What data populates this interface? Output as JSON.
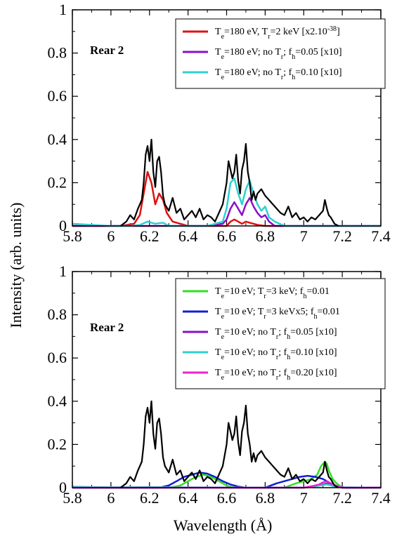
{
  "ylabel": "Intensity (arb. units)",
  "xlabel": "Wavelength (Å)",
  "chart_data": [
    {
      "type": "line",
      "annotation": "Rear 2",
      "xlim": [
        5.8,
        7.4
      ],
      "ylim": [
        0,
        1
      ],
      "xticks": [
        "5.8",
        "6",
        "6.2",
        "6.4",
        "6.6",
        "6.8",
        "7",
        "7.2",
        "7.4"
      ],
      "yticks": [
        "0",
        "0.2",
        "0.4",
        "0.6",
        "0.8",
        "1"
      ],
      "legend_position": "top-right",
      "series": [
        {
          "legend": [
            [
              "T",
              "",
              "e"
            ],
            [
              "=180 eV, T",
              "",
              ""
            ],
            [
              "",
              "",
              "r"
            ],
            [
              "=2 keV [x2.10",
              "",
              ""
            ],
            [
              "",
              "-38",
              ""
            ],
            [
              "]",
              "",
              ""
            ]
          ],
          "color": "#e01010",
          "x": [
            5.8,
            6.05,
            6.12,
            6.15,
            6.17,
            6.19,
            6.21,
            6.23,
            6.25,
            6.27,
            6.29,
            6.32,
            6.36,
            6.4,
            6.6,
            6.62,
            6.64,
            6.66,
            6.68,
            6.7,
            6.72,
            6.74,
            6.76,
            6.8,
            6.9,
            7.4
          ],
          "y": [
            0,
            0,
            0.01,
            0.05,
            0.15,
            0.25,
            0.2,
            0.1,
            0.15,
            0.12,
            0.06,
            0.02,
            0.01,
            0,
            0,
            0.02,
            0.03,
            0.02,
            0.01,
            0.02,
            0.015,
            0.01,
            0.005,
            0,
            0,
            0
          ]
        },
        {
          "legend": [
            [
              "T",
              "",
              "e"
            ],
            [
              "=180 eV; no T",
              "",
              ""
            ],
            [
              "",
              "",
              "r"
            ],
            [
              "; f",
              "",
              ""
            ],
            [
              "",
              "",
              "h"
            ],
            [
              "=0.05 [x10]",
              "",
              ""
            ]
          ],
          "color": "#8a10c8",
          "x": [
            5.8,
            6.5,
            6.58,
            6.6,
            6.62,
            6.64,
            6.66,
            6.68,
            6.7,
            6.72,
            6.74,
            6.76,
            6.78,
            6.8,
            6.82,
            6.85,
            7.4
          ],
          "y": [
            0,
            0,
            0.01,
            0.03,
            0.08,
            0.11,
            0.08,
            0.05,
            0.1,
            0.13,
            0.09,
            0.06,
            0.04,
            0.05,
            0.02,
            0,
            0
          ]
        },
        {
          "legend": [
            [
              "T",
              "",
              "e"
            ],
            [
              "=180 eV; no T",
              "",
              ""
            ],
            [
              "",
              "",
              "r"
            ],
            [
              "; f",
              "",
              ""
            ],
            [
              "",
              "",
              "h"
            ],
            [
              "=0.10 [x10]",
              "",
              ""
            ]
          ],
          "color": "#30d0d0",
          "x": [
            5.8,
            5.9,
            6.0,
            6.1,
            6.15,
            6.19,
            6.23,
            6.27,
            6.3,
            6.5,
            6.58,
            6.6,
            6.62,
            6.64,
            6.66,
            6.68,
            6.7,
            6.72,
            6.74,
            6.76,
            6.78,
            6.8,
            6.82,
            6.85,
            6.9,
            7.4
          ],
          "y": [
            0.01,
            0.005,
            0,
            0,
            0.005,
            0.02,
            0.01,
            0.015,
            0,
            0,
            0.02,
            0.08,
            0.2,
            0.22,
            0.15,
            0.1,
            0.17,
            0.21,
            0.15,
            0.1,
            0.07,
            0.09,
            0.04,
            0.02,
            0,
            0
          ]
        },
        {
          "legend": null,
          "color": "#000000",
          "x": [
            6.05,
            6.08,
            6.1,
            6.12,
            6.14,
            6.16,
            6.17,
            6.18,
            6.19,
            6.2,
            6.21,
            6.22,
            6.23,
            6.24,
            6.25,
            6.26,
            6.27,
            6.28,
            6.3,
            6.32,
            6.34,
            6.36,
            6.38,
            6.4,
            6.42,
            6.44,
            6.46,
            6.48,
            6.5,
            6.52,
            6.54,
            6.56,
            6.58,
            6.6,
            6.61,
            6.62,
            6.63,
            6.64,
            6.65,
            6.66,
            6.67,
            6.68,
            6.69,
            6.7,
            6.71,
            6.72,
            6.73,
            6.74,
            6.75,
            6.76,
            6.78,
            6.8,
            6.82,
            6.84,
            6.86,
            6.88,
            6.9,
            6.92,
            6.94,
            6.96,
            6.98,
            7.0,
            7.02,
            7.04,
            7.06,
            7.08,
            7.1,
            7.11,
            7.12,
            7.13,
            7.14,
            7.16,
            7.18
          ],
          "y": [
            0,
            0.02,
            0.05,
            0.03,
            0.08,
            0.12,
            0.2,
            0.33,
            0.37,
            0.3,
            0.4,
            0.25,
            0.18,
            0.3,
            0.32,
            0.25,
            0.14,
            0.1,
            0.07,
            0.13,
            0.06,
            0.08,
            0.03,
            0.05,
            0.07,
            0.04,
            0.08,
            0.03,
            0.05,
            0.04,
            0.02,
            0.06,
            0.1,
            0.2,
            0.3,
            0.26,
            0.22,
            0.25,
            0.33,
            0.21,
            0.15,
            0.26,
            0.3,
            0.38,
            0.25,
            0.2,
            0.12,
            0.16,
            0.12,
            0.15,
            0.17,
            0.14,
            0.12,
            0.1,
            0.08,
            0.06,
            0.05,
            0.09,
            0.04,
            0.06,
            0.03,
            0.04,
            0.02,
            0.04,
            0.03,
            0.05,
            0.07,
            0.12,
            0.08,
            0.05,
            0.04,
            0.01,
            0
          ]
        }
      ]
    },
    {
      "type": "line",
      "annotation": "Rear 2",
      "xlim": [
        5.8,
        7.4
      ],
      "ylim": [
        0,
        1
      ],
      "xticks": [
        "5.8",
        "6",
        "6.2",
        "6.4",
        "6.6",
        "6.8",
        "7",
        "7.2",
        "7.4"
      ],
      "yticks": [
        "0",
        "0.2",
        "0.4",
        "0.6",
        "0.8",
        "1"
      ],
      "legend_position": "top-right",
      "series": [
        {
          "legend": [
            [
              "T",
              "",
              "e"
            ],
            [
              "=10 eV; T",
              "",
              ""
            ],
            [
              "",
              "",
              "r"
            ],
            [
              "=3 keV; f",
              "",
              ""
            ],
            [
              "",
              "",
              "h"
            ],
            [
              "=0.01",
              "",
              ""
            ]
          ],
          "color": "#30e020",
          "x": [
            5.8,
            6.3,
            6.36,
            6.4,
            6.44,
            6.48,
            6.52,
            6.56,
            6.6,
            6.64,
            6.7,
            6.9,
            6.96,
            7.0,
            7.04,
            7.07,
            7.09,
            7.11,
            7.12,
            7.13,
            7.15,
            7.17,
            7.2,
            7.4
          ],
          "y": [
            0,
            0,
            0.01,
            0.03,
            0.05,
            0.06,
            0.05,
            0.03,
            0.01,
            0,
            0,
            0,
            0.02,
            0.03,
            0.04,
            0.06,
            0.1,
            0.12,
            0.11,
            0.08,
            0.04,
            0.02,
            0,
            0
          ]
        },
        {
          "legend": [
            [
              "T",
              "",
              "e"
            ],
            [
              "=10 eV; T",
              "",
              ""
            ],
            [
              "",
              "",
              "r"
            ],
            [
              "=3 keV",
              "",
              ""
            ],
            [
              "x5; f",
              "",
              ""
            ],
            [
              "",
              "",
              "h"
            ],
            [
              "=0.01",
              "",
              ""
            ]
          ],
          "color": "#1020d0",
          "x": [
            5.8,
            6.25,
            6.3,
            6.34,
            6.38,
            6.42,
            6.46,
            6.5,
            6.54,
            6.58,
            6.62,
            6.66,
            6.7,
            6.8,
            6.86,
            6.92,
            6.98,
            7.02,
            7.06,
            7.1,
            7.14,
            7.18,
            7.22,
            7.4
          ],
          "y": [
            0,
            0,
            0.01,
            0.03,
            0.05,
            0.06,
            0.07,
            0.065,
            0.05,
            0.03,
            0.015,
            0.005,
            0,
            0,
            0.02,
            0.035,
            0.05,
            0.055,
            0.05,
            0.04,
            0.02,
            0.005,
            0,
            0
          ]
        },
        {
          "legend": [
            [
              "T",
              "",
              "e"
            ],
            [
              "=10 eV; no T",
              "",
              ""
            ],
            [
              "",
              "",
              "r"
            ],
            [
              "; f",
              "",
              ""
            ],
            [
              "",
              "",
              "h"
            ],
            [
              "=0.05 [x10]",
              "",
              ""
            ]
          ],
          "color": "#8a10c8",
          "x": [
            5.8,
            7.0,
            7.05,
            7.08,
            7.1,
            7.12,
            7.14,
            7.17,
            7.2,
            7.4
          ],
          "y": [
            0,
            0,
            0.005,
            0.01,
            0.015,
            0.02,
            0.012,
            0.005,
            0,
            0
          ]
        },
        {
          "legend": [
            [
              "T",
              "",
              "e"
            ],
            [
              "=10 eV; no T",
              "",
              ""
            ],
            [
              "",
              "",
              "r"
            ],
            [
              "; f",
              "",
              ""
            ],
            [
              "",
              "",
              "h"
            ],
            [
              "=0.10 [x10]",
              "",
              ""
            ]
          ],
          "color": "#30d0d0",
          "x": [
            5.8,
            5.9,
            6.0,
            6.1,
            6.2,
            6.3,
            6.9,
            7.0,
            7.05,
            7.1,
            7.12,
            7.15,
            7.2,
            7.4
          ],
          "y": [
            0.005,
            0.003,
            0.002,
            0.002,
            0.003,
            0.002,
            0,
            0,
            0.005,
            0.012,
            0.015,
            0.008,
            0.002,
            0
          ]
        },
        {
          "legend": [
            [
              "T",
              "",
              "e"
            ],
            [
              "=10 eV; no T",
              "",
              ""
            ],
            [
              "",
              "",
              "r"
            ],
            [
              "; f",
              "",
              ""
            ],
            [
              "",
              "",
              "h"
            ],
            [
              "=0.20 [x10]",
              "",
              ""
            ]
          ],
          "color": "#f020d0",
          "x": [
            5.8,
            7.0,
            7.05,
            7.08,
            7.1,
            7.12,
            7.14,
            7.17,
            7.2,
            7.4
          ],
          "y": [
            0,
            0,
            0.008,
            0.015,
            0.025,
            0.03,
            0.02,
            0.008,
            0,
            0
          ]
        },
        {
          "legend": null,
          "color": "#000000",
          "x": [
            6.05,
            6.08,
            6.1,
            6.12,
            6.14,
            6.16,
            6.17,
            6.18,
            6.19,
            6.2,
            6.21,
            6.22,
            6.23,
            6.24,
            6.25,
            6.26,
            6.27,
            6.28,
            6.3,
            6.32,
            6.34,
            6.36,
            6.38,
            6.4,
            6.42,
            6.44,
            6.46,
            6.48,
            6.5,
            6.52,
            6.54,
            6.56,
            6.58,
            6.6,
            6.61,
            6.62,
            6.63,
            6.64,
            6.65,
            6.66,
            6.67,
            6.68,
            6.69,
            6.7,
            6.71,
            6.72,
            6.73,
            6.74,
            6.75,
            6.76,
            6.78,
            6.8,
            6.82,
            6.84,
            6.86,
            6.88,
            6.9,
            6.92,
            6.94,
            6.96,
            6.98,
            7.0,
            7.02,
            7.04,
            7.06,
            7.08,
            7.1,
            7.11,
            7.12,
            7.13,
            7.14,
            7.16,
            7.18
          ],
          "y": [
            0,
            0.02,
            0.05,
            0.03,
            0.08,
            0.12,
            0.2,
            0.33,
            0.37,
            0.3,
            0.4,
            0.25,
            0.18,
            0.3,
            0.32,
            0.25,
            0.14,
            0.1,
            0.07,
            0.13,
            0.06,
            0.08,
            0.03,
            0.05,
            0.07,
            0.04,
            0.08,
            0.03,
            0.05,
            0.04,
            0.02,
            0.06,
            0.1,
            0.2,
            0.3,
            0.26,
            0.22,
            0.25,
            0.33,
            0.21,
            0.15,
            0.26,
            0.3,
            0.38,
            0.25,
            0.2,
            0.12,
            0.16,
            0.12,
            0.15,
            0.17,
            0.14,
            0.12,
            0.1,
            0.08,
            0.06,
            0.05,
            0.09,
            0.04,
            0.06,
            0.03,
            0.04,
            0.02,
            0.04,
            0.03,
            0.05,
            0.07,
            0.12,
            0.08,
            0.05,
            0.04,
            0.01,
            0
          ]
        }
      ]
    }
  ]
}
